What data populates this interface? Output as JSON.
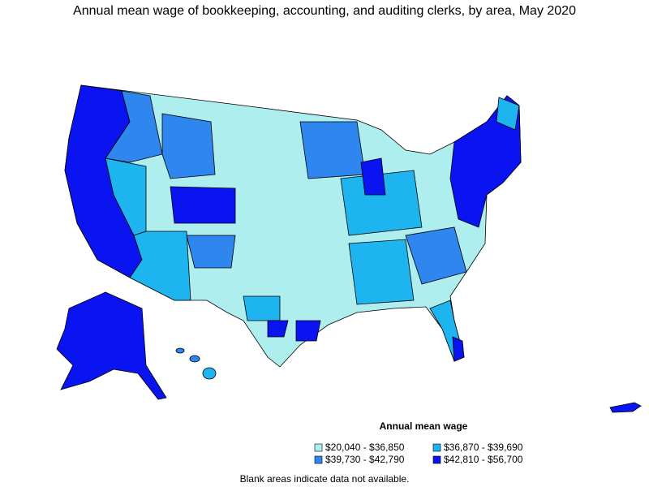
{
  "title": "Annual mean wage of bookkeeping, accounting, and auditing clerks, by area, May 2020",
  "legend": {
    "title": "Annual mean wage",
    "items": [
      {
        "label": "$20,040 - $36,850",
        "color": "#aeeeee"
      },
      {
        "label": "$36,870 - $39,690",
        "color": "#1eb4f0"
      },
      {
        "label": "$39,730 - $42,790",
        "color": "#2e86ee"
      },
      {
        "label": "$42,810 - $56,700",
        "color": "#0a14f0"
      }
    ]
  },
  "note": "Blank areas indicate data not available."
}
